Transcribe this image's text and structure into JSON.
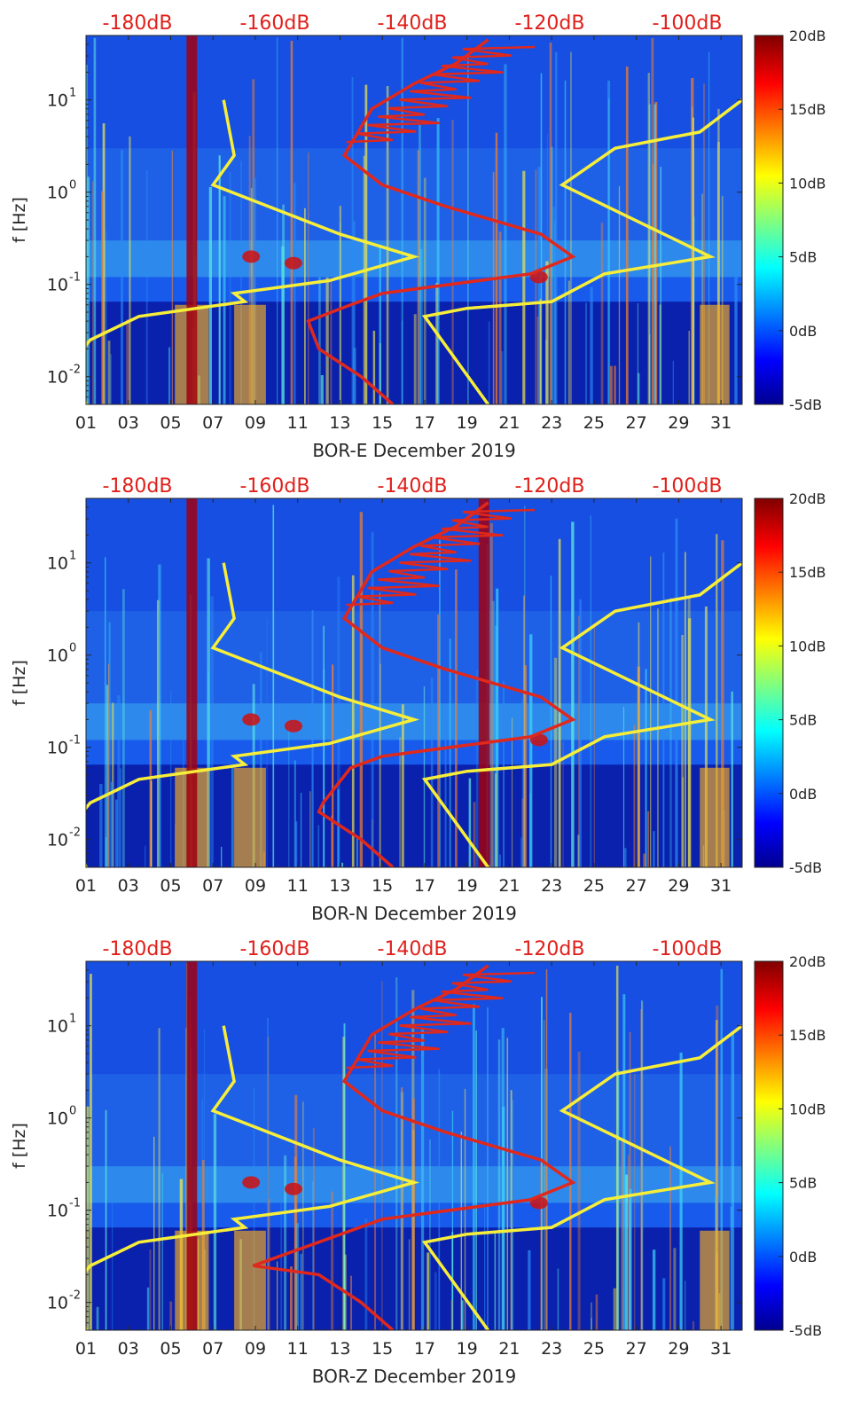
{
  "colors": {
    "top_label": "#e0201b",
    "yellow_line": "#f7ee3a",
    "red_line": "#e0281c",
    "axis": "#262626",
    "background": "#ffffff",
    "jet": [
      "#00008f",
      "#0000ff",
      "#00ffff",
      "#ffff00",
      "#ff0000",
      "#800000"
    ]
  },
  "chart_data": [
    {
      "type": "heatmap",
      "station": "BOR-E",
      "xlabel": "BOR-E December 2019",
      "ylabel": "f [Hz]",
      "x_ticks": [
        "01",
        "03",
        "05",
        "07",
        "09",
        "11",
        "13",
        "15",
        "17",
        "19",
        "21",
        "23",
        "25",
        "27",
        "29",
        "31"
      ],
      "xlim": [
        1,
        32
      ],
      "ylim": [
        0.005,
        50
      ],
      "y_scale": "log",
      "y_ticks": [
        {
          "label": "10",
          "exp": "-2",
          "value": 0.01
        },
        {
          "label": "10",
          "exp": "-1",
          "value": 0.1
        },
        {
          "label": "10",
          "exp": "0",
          "value": 1
        },
        {
          "label": "10",
          "exp": "1",
          "value": 10
        }
      ],
      "top_labels": [
        "-180dB",
        "-160dB",
        "-140dB",
        "-120dB",
        "-100dB"
      ],
      "colorbar": {
        "ticks": [
          "20dB",
          "15dB",
          "10dB",
          "5dB",
          "0dB",
          "-5dB"
        ],
        "range": [
          -5,
          20
        ],
        "colormap": "jet"
      },
      "hot_columns": [
        {
          "day": 6.0,
          "width": 0.5
        }
      ],
      "red_line_low_day": 11.5,
      "red_line_low_freq": 0.04
    },
    {
      "type": "heatmap",
      "station": "BOR-N",
      "xlabel": "BOR-N December 2019",
      "ylabel": "f [Hz]",
      "x_ticks": [
        "01",
        "03",
        "05",
        "07",
        "09",
        "11",
        "13",
        "15",
        "17",
        "19",
        "21",
        "23",
        "25",
        "27",
        "29",
        "31"
      ],
      "xlim": [
        1,
        32
      ],
      "ylim": [
        0.005,
        50
      ],
      "y_scale": "log",
      "y_ticks": [
        {
          "label": "10",
          "exp": "-2",
          "value": 0.01
        },
        {
          "label": "10",
          "exp": "-1",
          "value": 0.1
        },
        {
          "label": "10",
          "exp": "0",
          "value": 1
        },
        {
          "label": "10",
          "exp": "1",
          "value": 10
        }
      ],
      "top_labels": [
        "-180dB",
        "-160dB",
        "-140dB",
        "-120dB",
        "-100dB"
      ],
      "colorbar": {
        "ticks": [
          "20dB",
          "15dB",
          "10dB",
          "5dB",
          "0dB",
          "-5dB"
        ],
        "range": [
          -5,
          20
        ],
        "colormap": "jet"
      },
      "hot_columns": [
        {
          "day": 6.0,
          "width": 0.5
        },
        {
          "day": 19.8,
          "width": 0.5
        }
      ],
      "red_line_low_day": 12.2,
      "red_line_low_freq": 0.025
    },
    {
      "type": "heatmap",
      "station": "BOR-Z",
      "xlabel": "BOR-Z December 2019",
      "ylabel": "f [Hz]",
      "x_ticks": [
        "01",
        "03",
        "05",
        "07",
        "09",
        "11",
        "13",
        "15",
        "17",
        "19",
        "21",
        "23",
        "25",
        "27",
        "29",
        "31"
      ],
      "xlim": [
        1,
        32
      ],
      "ylim": [
        0.005,
        50
      ],
      "y_scale": "log",
      "y_ticks": [
        {
          "label": "10",
          "exp": "-2",
          "value": 0.01
        },
        {
          "label": "10",
          "exp": "-1",
          "value": 0.1
        },
        {
          "label": "10",
          "exp": "0",
          "value": 1
        },
        {
          "label": "10",
          "exp": "1",
          "value": 10
        }
      ],
      "top_labels": [
        "-180dB",
        "-160dB",
        "-140dB",
        "-120dB",
        "-100dB"
      ],
      "colorbar": {
        "ticks": [
          "20dB",
          "15dB",
          "10dB",
          "5dB",
          "0dB",
          "-5dB"
        ],
        "range": [
          -5,
          20
        ],
        "colormap": "jet"
      },
      "hot_columns": [
        {
          "day": 6.0,
          "width": 0.5
        }
      ],
      "red_line_low_day": 8.9,
      "red_line_low_freq": 0.025
    }
  ],
  "yellow_curve": [
    [
      1.0,
      0.005
    ],
    [
      0.4,
      0.015
    ],
    [
      1.2,
      0.025
    ],
    [
      3.5,
      0.045
    ],
    [
      8.5,
      0.065
    ],
    [
      8.0,
      0.08
    ],
    [
      12.5,
      0.11
    ],
    [
      16.5,
      0.2
    ],
    [
      13.0,
      0.35
    ],
    [
      7.0,
      1.2
    ],
    [
      8.0,
      2.5
    ],
    [
      7.5,
      10
    ]
  ],
  "yellow_curve_right": [
    [
      20.0,
      0.005
    ],
    [
      17.0,
      0.045
    ],
    [
      19.0,
      0.055
    ],
    [
      23.0,
      0.065
    ],
    [
      25.5,
      0.13
    ],
    [
      30.5,
      0.2
    ],
    [
      23.5,
      1.2
    ],
    [
      26.0,
      3.0
    ],
    [
      30.0,
      4.5
    ],
    [
      32.0,
      10
    ]
  ],
  "red_curve": [
    [
      15.5,
      0.005
    ],
    [
      14.0,
      0.01
    ],
    [
      12.0,
      0.02
    ],
    [
      11.5,
      0.04
    ],
    [
      13.5,
      0.06
    ],
    [
      15.0,
      0.08
    ],
    [
      22.0,
      0.13
    ],
    [
      24.0,
      0.2
    ],
    [
      22.5,
      0.35
    ],
    [
      18.0,
      0.7
    ],
    [
      15.0,
      1.2
    ],
    [
      13.2,
      2.5
    ],
    [
      14.5,
      8
    ],
    [
      16.5,
      15
    ],
    [
      18.5,
      25
    ],
    [
      20.0,
      45
    ]
  ]
}
